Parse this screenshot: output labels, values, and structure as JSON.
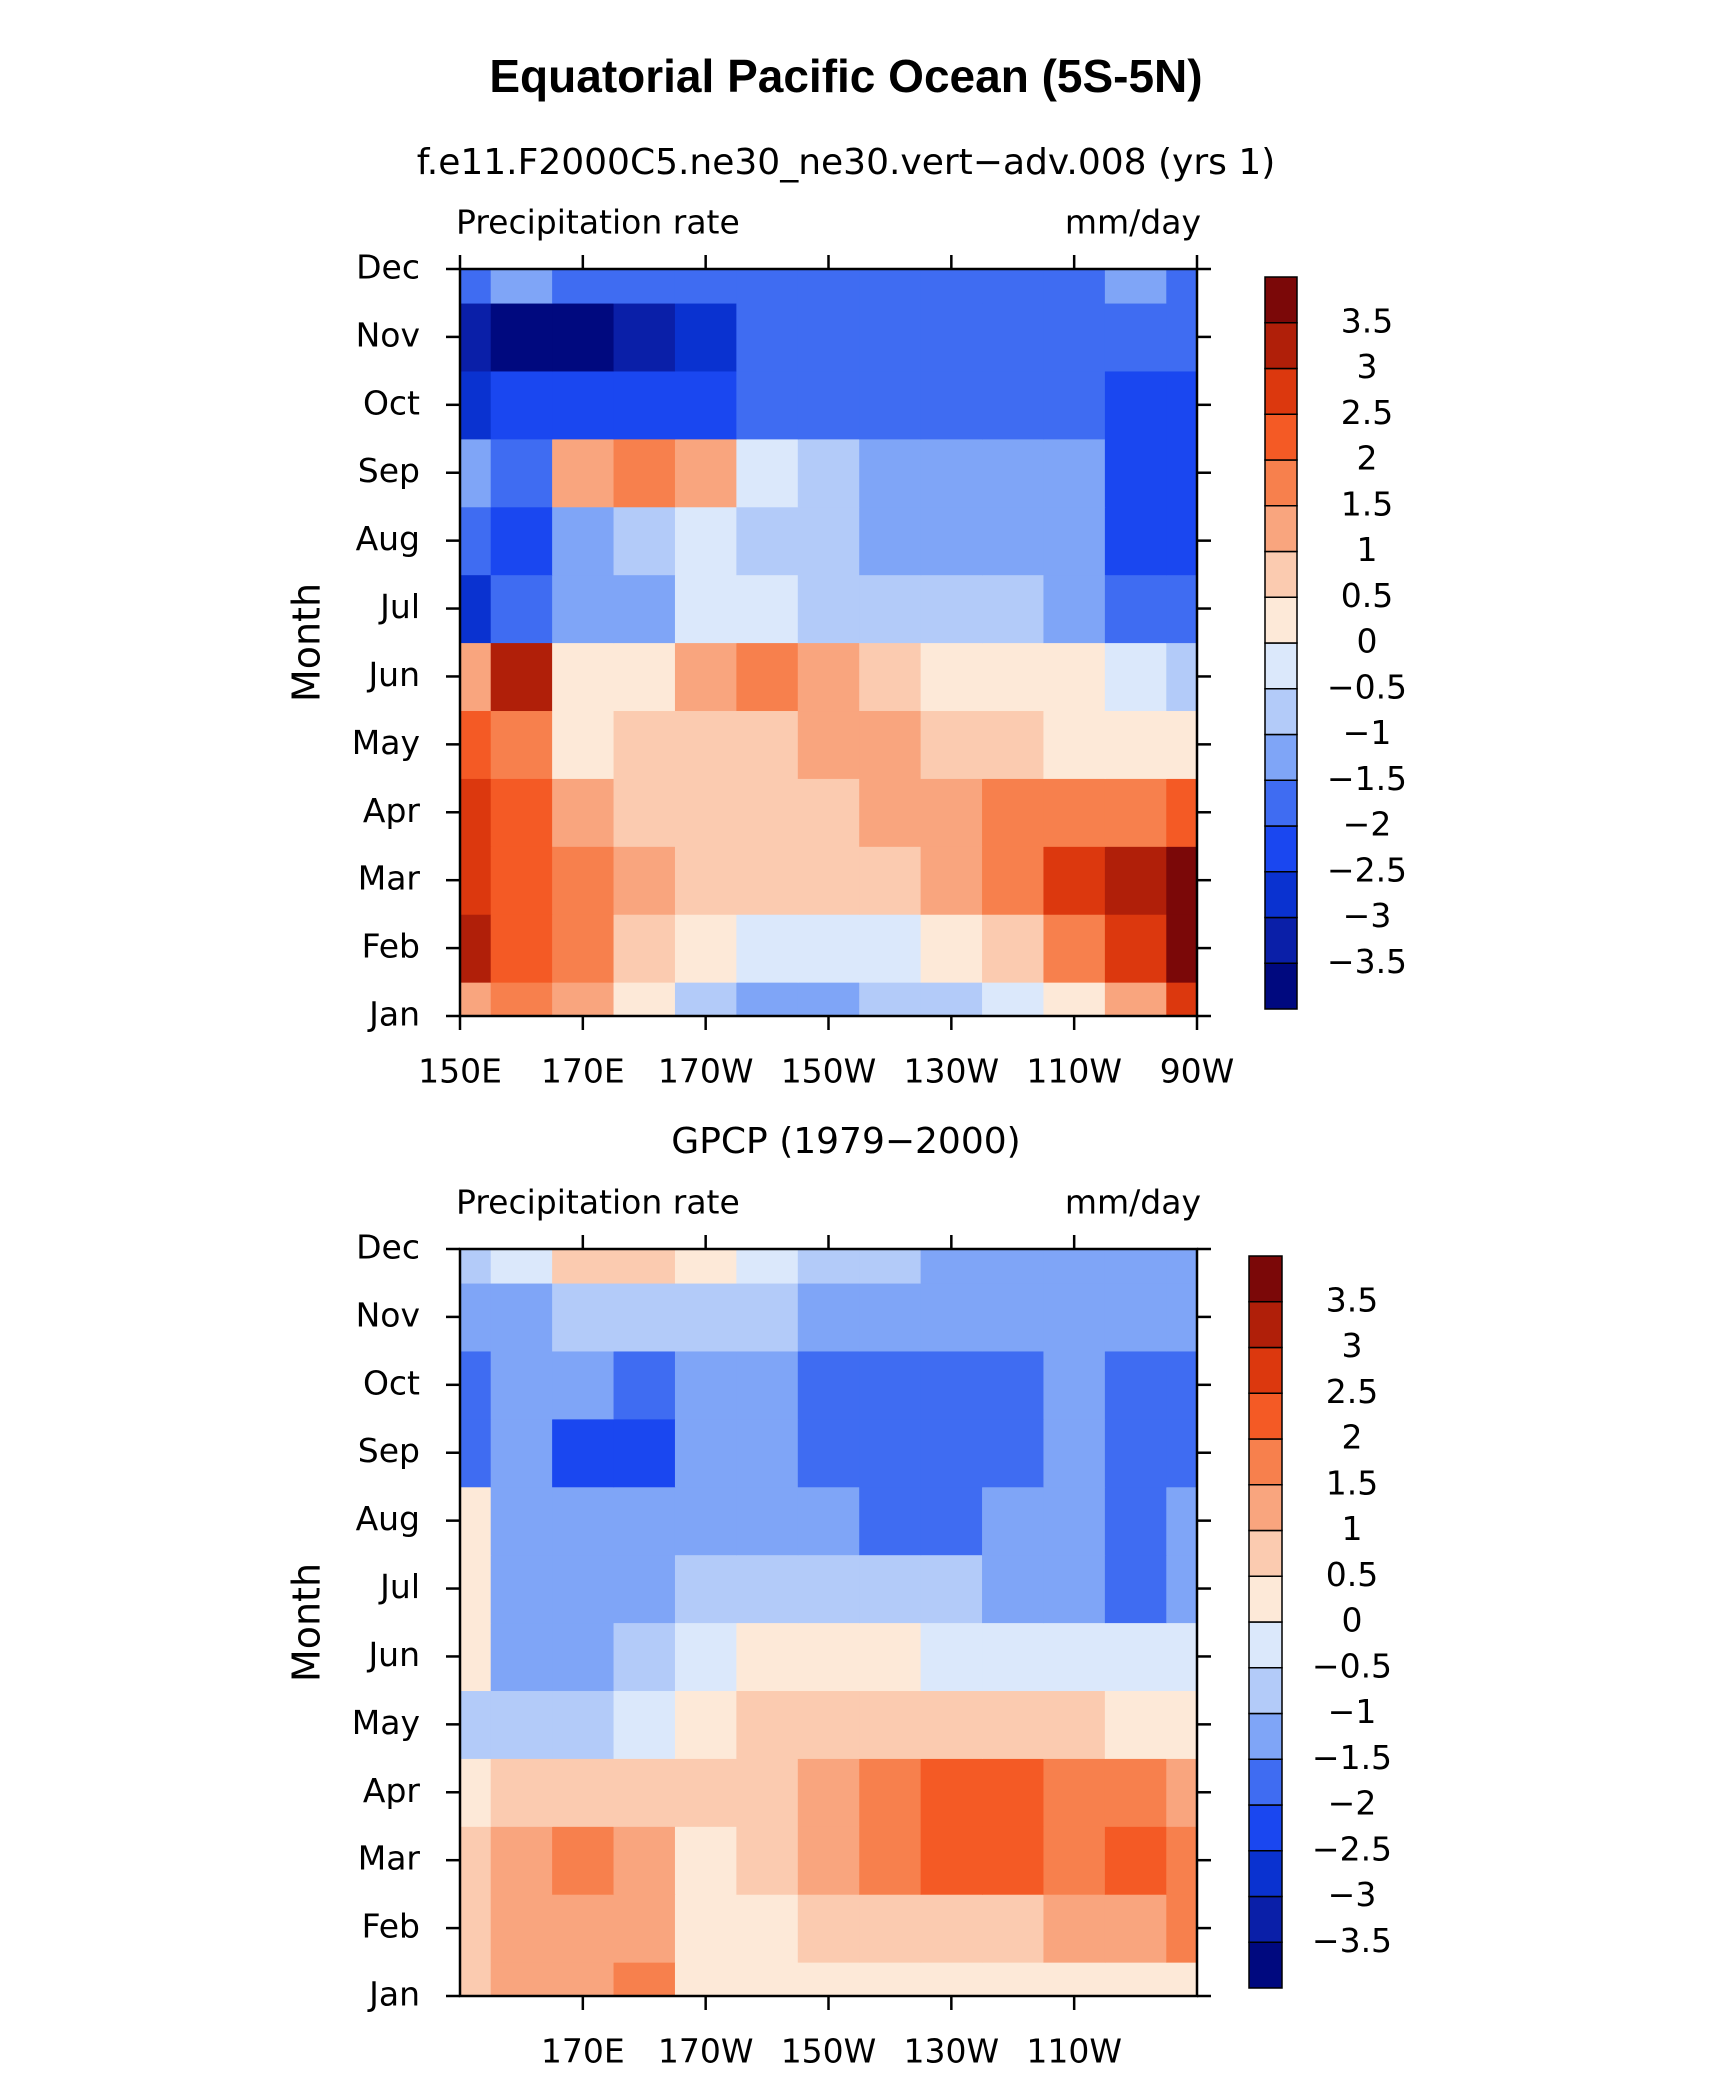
{
  "title": "Equatorial Pacific Ocean (5S-5N)",
  "chart_data": [
    {
      "type": "contour",
      "title": "f.e11.F2000C5.ne30_ne30.vert−adv.008 (yrs 1)",
      "left_label": "Precipitation rate",
      "right_label": "mm/day",
      "ylabel": "Month",
      "categories": [
        "Jan",
        "Feb",
        "Mar",
        "Apr",
        "May",
        "Jun",
        "Jul",
        "Aug",
        "Sep",
        "Oct",
        "Nov",
        "Dec"
      ],
      "x": [
        150,
        160,
        170,
        180,
        190,
        200,
        210,
        220,
        230,
        240,
        250,
        260,
        270
      ],
      "xlim": [
        150,
        270
      ],
      "xticks": [
        {
          "value": 150,
          "label": "150E"
        },
        {
          "value": 170,
          "label": "170E"
        },
        {
          "value": 190,
          "label": "170W"
        },
        {
          "value": 210,
          "label": "150W"
        },
        {
          "value": 230,
          "label": "130W"
        },
        {
          "value": 250,
          "label": "110W"
        },
        {
          "value": 270,
          "label": "90W"
        }
      ],
      "values": [
        [
          1.5,
          2,
          1.5,
          0.5,
          -0.5,
          -1,
          -1,
          -0.5,
          -0.5,
          0,
          0.5,
          1.5,
          3
        ],
        [
          3.5,
          2.5,
          2,
          1,
          0.5,
          0,
          0,
          0,
          0.5,
          1,
          2,
          3,
          4
        ],
        [
          3,
          2.5,
          2,
          1.5,
          1,
          1,
          1,
          1,
          1.5,
          2,
          3,
          3.5,
          4
        ],
        [
          3,
          2.5,
          1.5,
          1,
          1,
          1,
          1,
          1.5,
          1.5,
          2,
          2,
          2,
          2.5
        ],
        [
          2.5,
          2,
          0.5,
          1,
          1,
          1,
          1.5,
          1.5,
          1,
          1,
          0.5,
          0.5,
          0.5
        ],
        [
          1.5,
          3.5,
          0.5,
          0.5,
          1.5,
          2,
          1.5,
          1,
          0.5,
          0.5,
          0.5,
          0,
          -0.5
        ],
        [
          -2.5,
          -1.5,
          -1,
          -1,
          0,
          0,
          -0.5,
          -0.5,
          -0.5,
          -0.5,
          -1,
          -1.5,
          -1.5
        ],
        [
          -1.5,
          -2,
          -1,
          -0.5,
          0,
          -0.5,
          -0.5,
          -1,
          -1,
          -1,
          -1,
          -2,
          -2
        ],
        [
          -1,
          -1.5,
          1.5,
          2,
          1.5,
          0,
          -0.5,
          -1,
          -1,
          -1,
          -1,
          -2,
          -2
        ],
        [
          -2.5,
          -2,
          -2,
          -2,
          -2,
          -1.5,
          -1.5,
          -1.5,
          -1.5,
          -1.5,
          -1.5,
          -2,
          -2
        ],
        [
          -3,
          -3.5,
          -3.5,
          -3,
          -2.5,
          -1.5,
          -1.5,
          -1.5,
          -1.5,
          -1.5,
          -1.5,
          -1.5,
          -1.5
        ],
        [
          -1.5,
          -1,
          -1.5,
          -1.5,
          -1.5,
          -1.5,
          -1.5,
          -1.5,
          -1.5,
          -1.5,
          -1.5,
          -1,
          -1.5
        ]
      ],
      "levels": [
        {
          "value": -3.5,
          "label": "−3.5"
        },
        {
          "value": -3,
          "label": "−3"
        },
        {
          "value": -2.5,
          "label": "−2.5"
        },
        {
          "value": -2,
          "label": "−2"
        },
        {
          "value": -1.5,
          "label": "−1.5"
        },
        {
          "value": -1,
          "label": "−1"
        },
        {
          "value": -0.5,
          "label": "−0.5"
        },
        0,
        0.5,
        1,
        1.5,
        2,
        2.5,
        3,
        3.5
      ],
      "colors": [
        "#00097f",
        "#0a1fa8",
        "#0a32d0",
        "#1a47f0",
        "#3f6cf2",
        "#7fa5f7",
        "#b3cbf9",
        "#dbe8fb",
        "#fde9d8",
        "#fbcbb0",
        "#f9a57e",
        "#f7804d",
        "#f45a25",
        "#dc380e",
        "#b01f09",
        "#7b0808"
      ]
    },
    {
      "type": "contour",
      "title": "GPCP (1979−2000)",
      "left_label": "Precipitation rate",
      "right_label": "mm/day",
      "ylabel": "Month",
      "categories": [
        "Jan",
        "Feb",
        "Mar",
        "Apr",
        "May",
        "Jun",
        "Jul",
        "Aug",
        "Sep",
        "Oct",
        "Nov",
        "Dec"
      ],
      "x": [
        150,
        160,
        170,
        180,
        190,
        200,
        210,
        220,
        230,
        240,
        250,
        260,
        270
      ],
      "xlim": [
        150,
        270
      ],
      "xticks": [
        {
          "value": 170,
          "label": "170E"
        },
        {
          "value": 190,
          "label": "170W"
        },
        {
          "value": 210,
          "label": "150W"
        },
        {
          "value": 230,
          "label": "130W"
        },
        {
          "value": 250,
          "label": "110W"
        }
      ],
      "values": [
        [
          1,
          1.5,
          1.5,
          2,
          0.5,
          0.5,
          0.5,
          0.5,
          0.5,
          0.5,
          0.5,
          0.5,
          0.5
        ],
        [
          1,
          1.5,
          1.5,
          1.5,
          0.5,
          0.5,
          1,
          1,
          1,
          1,
          1.5,
          1.5,
          2
        ],
        [
          1,
          1.5,
          2,
          1.5,
          0.5,
          1,
          1.5,
          2,
          2.5,
          2.5,
          2,
          2.5,
          2
        ],
        [
          0.5,
          1,
          1,
          1,
          1,
          1,
          1.5,
          2,
          2.5,
          2.5,
          2,
          2,
          1.5
        ],
        [
          -0.5,
          -0.5,
          -0.5,
          0,
          0.5,
          1,
          1,
          1,
          1,
          1,
          1,
          0.5,
          0.5
        ],
        [
          0.5,
          -1,
          -1,
          -0.5,
          0,
          0.5,
          0.5,
          0.5,
          0,
          0,
          0,
          0,
          0
        ],
        [
          0.5,
          -1,
          -1,
          -1,
          -0.5,
          -0.5,
          -0.5,
          -0.5,
          -0.5,
          -1,
          -1,
          -1.5,
          -1
        ],
        [
          0.5,
          -1,
          -1,
          -1,
          -1,
          -1,
          -1,
          -1.5,
          -1.5,
          -1,
          -1,
          -1.5,
          -1
        ],
        [
          -1.5,
          -1,
          -2,
          -2,
          -1,
          -1,
          -1.5,
          -1.5,
          -1.5,
          -1.5,
          -1,
          -1.5,
          -1.5
        ],
        [
          -1.5,
          -1,
          -1,
          -1.5,
          -1,
          -1,
          -1.5,
          -1.5,
          -1.5,
          -1.5,
          -1,
          -1.5,
          -1.5
        ],
        [
          -1,
          -1,
          -0.5,
          -0.5,
          -0.5,
          -0.5,
          -1,
          -1,
          -1,
          -1,
          -1,
          -1,
          -1
        ],
        [
          -0.5,
          0,
          1,
          1,
          0.5,
          0,
          -0.5,
          -0.5,
          -1,
          -1,
          -1,
          -1,
          -1
        ]
      ],
      "levels": [
        {
          "value": -3.5,
          "label": "−3.5"
        },
        {
          "value": -3,
          "label": "−3"
        },
        {
          "value": -2.5,
          "label": "−2.5"
        },
        {
          "value": -2,
          "label": "−2"
        },
        {
          "value": -1.5,
          "label": "−1.5"
        },
        {
          "value": -1,
          "label": "−1"
        },
        {
          "value": -0.5,
          "label": "−0.5"
        },
        0,
        0.5,
        1,
        1.5,
        2,
        2.5,
        3,
        3.5
      ],
      "colors": [
        "#00097f",
        "#0a1fa8",
        "#0a32d0",
        "#1a47f0",
        "#3f6cf2",
        "#7fa5f7",
        "#b3cbf9",
        "#dbe8fb",
        "#fde9d8",
        "#fbcbb0",
        "#f9a57e",
        "#f7804d",
        "#f45a25",
        "#dc380e",
        "#b01f09",
        "#7b0808"
      ]
    }
  ]
}
